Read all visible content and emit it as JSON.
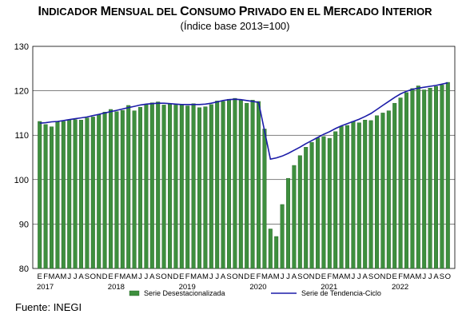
{
  "title_parts": [
    {
      "text": "I",
      "sc": false
    },
    {
      "text": "NDICADOR ",
      "sc": true
    },
    {
      "text": "M",
      "sc": false
    },
    {
      "text": "ENSUAL DEL ",
      "sc": true
    },
    {
      "text": "C",
      "sc": false
    },
    {
      "text": "ONSUMO ",
      "sc": true
    },
    {
      "text": "P",
      "sc": false
    },
    {
      "text": "RIVADO EN EL ",
      "sc": true
    },
    {
      "text": "M",
      "sc": false
    },
    {
      "text": "ERCADO ",
      "sc": true
    },
    {
      "text": "I",
      "sc": false
    },
    {
      "text": "NTERIOR",
      "sc": true
    }
  ],
  "subtitle": "(Índice base 2013=100)",
  "source": "Fuente: INEGI",
  "colors": {
    "bar": "#3e8f3e",
    "bar_edge": "#1f5f1f",
    "trend": "#1c1ca8"
  },
  "chart_data": {
    "type": "bar",
    "title": "Indicador Mensual del Consumo Privado en el Mercado Interior",
    "subtitle": "(Índice base 2013=100)",
    "ylim": [
      80,
      130
    ],
    "yticks": [
      80,
      90,
      100,
      110,
      120,
      130
    ],
    "grid": true,
    "legend_position": "bottom",
    "month_labels": [
      "E",
      "F",
      "M",
      "A",
      "M",
      "J",
      "J",
      "A",
      "S",
      "O",
      "N",
      "D"
    ],
    "year_labels": [
      "2017",
      "2018",
      "2019",
      "2020",
      "2021",
      "2022"
    ],
    "categories": [
      "2017-01",
      "2017-02",
      "2017-03",
      "2017-04",
      "2017-05",
      "2017-06",
      "2017-07",
      "2017-08",
      "2017-09",
      "2017-10",
      "2017-11",
      "2017-12",
      "2018-01",
      "2018-02",
      "2018-03",
      "2018-04",
      "2018-05",
      "2018-06",
      "2018-07",
      "2018-08",
      "2018-09",
      "2018-10",
      "2018-11",
      "2018-12",
      "2019-01",
      "2019-02",
      "2019-03",
      "2019-04",
      "2019-05",
      "2019-06",
      "2019-07",
      "2019-08",
      "2019-09",
      "2019-10",
      "2019-11",
      "2019-12",
      "2020-01",
      "2020-02",
      "2020-03",
      "2020-04",
      "2020-05",
      "2020-06",
      "2020-07",
      "2020-08",
      "2020-09",
      "2020-10",
      "2020-11",
      "2020-12",
      "2021-01",
      "2021-02",
      "2021-03",
      "2021-04",
      "2021-05",
      "2021-06",
      "2021-07",
      "2021-08",
      "2021-09",
      "2021-10",
      "2021-11",
      "2021-12",
      "2022-01",
      "2022-02",
      "2022-03",
      "2022-04",
      "2022-05",
      "2022-06",
      "2022-07",
      "2022-08",
      "2022-09",
      "2022-10"
    ],
    "series": [
      {
        "name": "Serie Desestacionalizada",
        "kind": "bar",
        "values": [
          113.1,
          112.4,
          111.9,
          113.0,
          113.1,
          113.4,
          113.5,
          113.4,
          113.9,
          114.1,
          114.6,
          115.2,
          115.8,
          115.3,
          115.6,
          116.7,
          115.5,
          116.3,
          116.9,
          117.3,
          117.5,
          116.8,
          117.0,
          116.8,
          117.0,
          116.6,
          117.1,
          116.2,
          116.4,
          116.9,
          117.7,
          117.6,
          118.1,
          118.3,
          117.9,
          117.2,
          117.9,
          117.6,
          111.4,
          88.9,
          87.2,
          94.4,
          100.3,
          103.2,
          105.4,
          107.3,
          108.4,
          109.4,
          109.7,
          109.3,
          110.8,
          112.0,
          112.2,
          113.1,
          112.8,
          113.4,
          113.3,
          114.4,
          115.0,
          115.5,
          117.2,
          118.4,
          119.6,
          120.5,
          121.1,
          120.2,
          120.6,
          121.0,
          121.3,
          121.9
        ]
      },
      {
        "name": "Serie de Tendencia-Ciclo",
        "kind": "line",
        "values": [
          112.7,
          112.8,
          113.0,
          113.1,
          113.3,
          113.5,
          113.7,
          113.9,
          114.1,
          114.4,
          114.7,
          115.0,
          115.3,
          115.6,
          115.9,
          116.2,
          116.5,
          116.8,
          117.0,
          117.1,
          117.2,
          117.2,
          117.1,
          117.0,
          116.9,
          116.9,
          116.9,
          116.9,
          117.0,
          117.2,
          117.5,
          117.8,
          118.0,
          118.1,
          118.0,
          117.8,
          117.6,
          117.4,
          111.0,
          104.6,
          104.9,
          105.3,
          105.9,
          106.6,
          107.3,
          108.1,
          108.8,
          109.5,
          110.2,
          110.8,
          111.5,
          112.1,
          112.6,
          113.1,
          113.6,
          114.2,
          114.9,
          115.8,
          116.7,
          117.6,
          118.5,
          119.3,
          119.9,
          120.3,
          120.6,
          120.8,
          121.0,
          121.2,
          121.5,
          121.8
        ]
      }
    ]
  }
}
